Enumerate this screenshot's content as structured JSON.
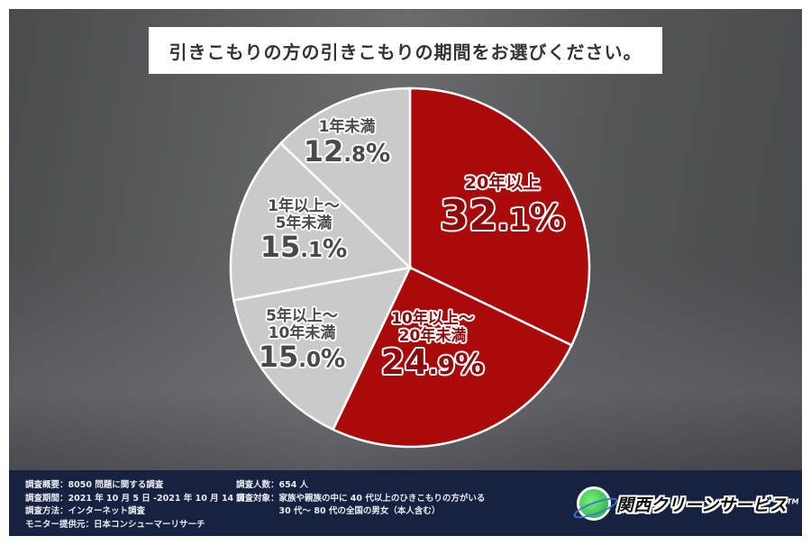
{
  "chart_data": {
    "type": "pie",
    "title": "引きこもりの方の引きこもりの期間をお選びください。",
    "start": "12 o'clock, clockwise",
    "slices": [
      {
        "label": "20年以上",
        "value": 32.1,
        "pct_text": "32.1%",
        "color": "#ab0a0a"
      },
      {
        "label": "10年以上～20年未満",
        "value": 24.9,
        "pct_text": "24.9%",
        "color": "#ab0a0a"
      },
      {
        "label": "5年以上～10年未満",
        "value": 15.0,
        "pct_text": "15.0%",
        "color": "#cacaca"
      },
      {
        "label": "1年以上～5年未満",
        "value": 15.1,
        "pct_text": "15.1%",
        "color": "#cacaca"
      },
      {
        "label": "1年未満",
        "value": 12.8,
        "pct_text": "12.8%",
        "color": "#cacaca"
      }
    ],
    "slice_label_lines": [
      [
        "20年以上"
      ],
      [
        "10年以上～",
        "20年未満"
      ],
      [
        "5年以上～",
        "10年未満"
      ],
      [
        "1年以上～",
        "5年未満"
      ],
      [
        "1年未満"
      ]
    ]
  },
  "footer": {
    "left": [
      "調査概要：8050 問題に関する調査",
      "調査期間：2021 年 10 月 5 日 -2021 年 10 月 14 日",
      "調査方法：インターネット調査",
      "モニター提供元：日本コンシューマーリサーチ"
    ],
    "right": [
      "調査人数：654 人",
      "調査対象：家族や親族の中に 40 代以上のひきこもりの方がいる",
      "　　　　　30 代～ 80 代の全国の男女（本人含む）"
    ],
    "logo": "関西クリーンサービス",
    "logo_tm": "TM"
  }
}
